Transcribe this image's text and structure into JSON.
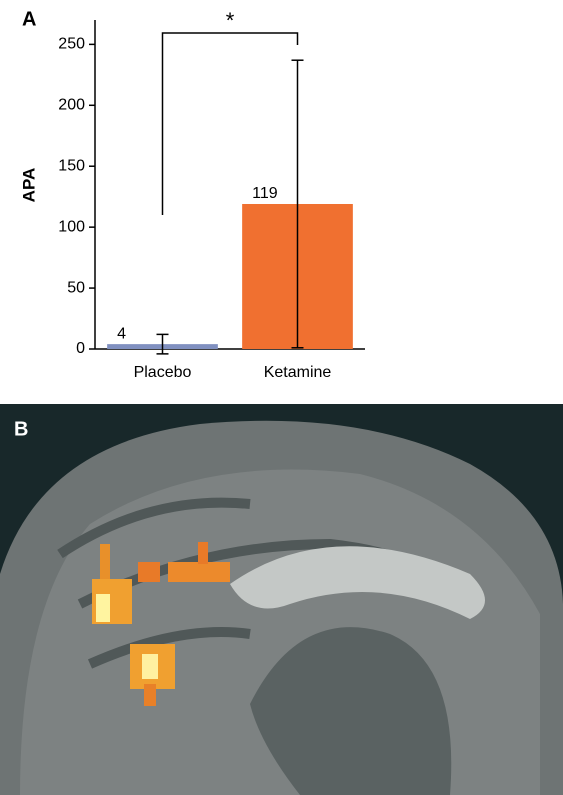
{
  "chart_data": {
    "type": "bar",
    "panel_label": "A",
    "y_label": "APA",
    "categories": [
      "Placebo",
      "Ketamine"
    ],
    "values": [
      4,
      119
    ],
    "errors": [
      8,
      118
    ],
    "colors": [
      "#8090c0",
      "#f07030"
    ],
    "ylim": [
      0,
      270
    ],
    "yticks": [
      0,
      50,
      100,
      150,
      200,
      250
    ],
    "annotation": "*"
  },
  "panel_b": {
    "label": "B"
  }
}
